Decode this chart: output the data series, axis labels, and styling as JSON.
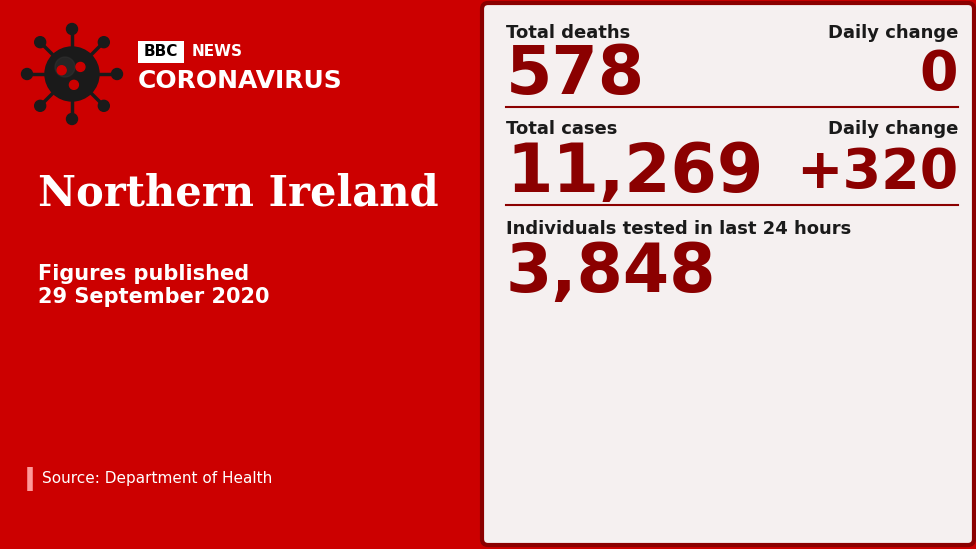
{
  "bg_red": "#cc0000",
  "bg_dark_red": "#8b0000",
  "panel_bg": "#f5f0f0",
  "dark_red_text": "#8b0000",
  "dark_text": "#1a1a1a",
  "white": "#ffffff",
  "region": "Northern Ireland",
  "date_line1": "Figures published",
  "date_line2": "29 September 2020",
  "source": "Source: Department of Health",
  "bbc_label": "BBC",
  "news_label": "NEWS",
  "coronavirus": "CORONAVIRUS",
  "total_deaths_label": "Total deaths",
  "total_deaths_value": "578",
  "deaths_daily_change_label": "Daily change",
  "deaths_daily_change_value": "0",
  "total_cases_label": "Total cases",
  "total_cases_value": "11,269",
  "cases_daily_change_label": "Daily change",
  "cases_daily_change_value": "+320",
  "tested_label": "Individuals tested in last 24 hours",
  "tested_value": "3,848",
  "virus_color": "#1a1a1a",
  "spike_tip_color": "#1a1a1a",
  "source_bar_color": "#ff9999"
}
